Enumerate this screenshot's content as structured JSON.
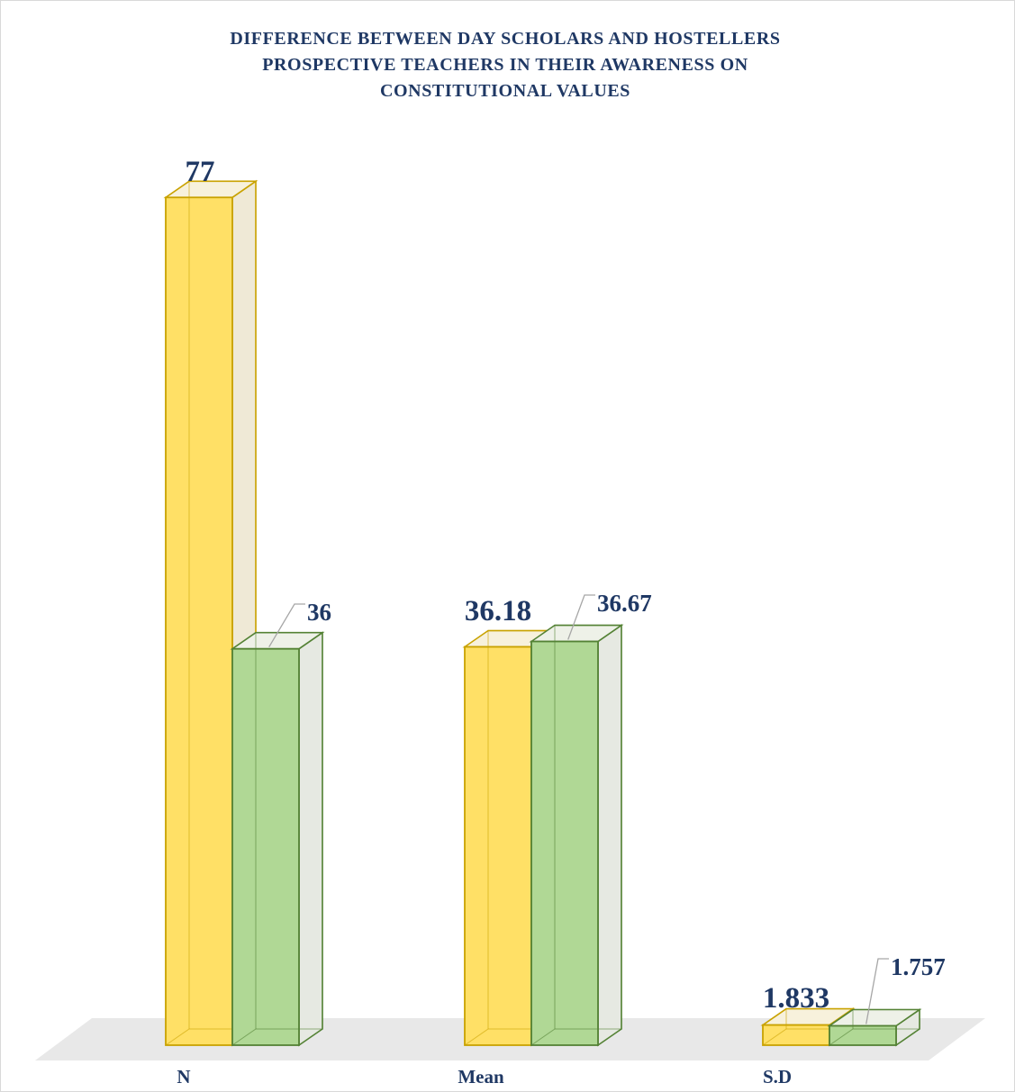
{
  "chart_data": {
    "type": "bar",
    "title_lines": [
      "DIFFERENCE BETWEEN DAY SCHOLARS AND HOSTELLERS",
      "PROSPECTIVE TEACHERS IN THEIR AWARENESS ON",
      "CONSTITUTIONAL VALUES"
    ],
    "categories": [
      "N",
      "Mean",
      "S.D"
    ],
    "series": [
      {
        "values": [
          77,
          36.18,
          1.833
        ],
        "labels": [
          "77",
          "36.18",
          "1.833"
        ],
        "color": "#ffe066",
        "edge": "#c9a200"
      },
      {
        "values": [
          36,
          36.67,
          1.757
        ],
        "labels": [
          "36",
          "36.67",
          "1.757"
        ],
        "color": "#b0d895",
        "edge": "#548235"
      }
    ],
    "ylim": [
      0,
      80
    ],
    "grid": false,
    "legend": "none",
    "floor_color": "#e8e8e8",
    "label_color": "#1f3864"
  }
}
